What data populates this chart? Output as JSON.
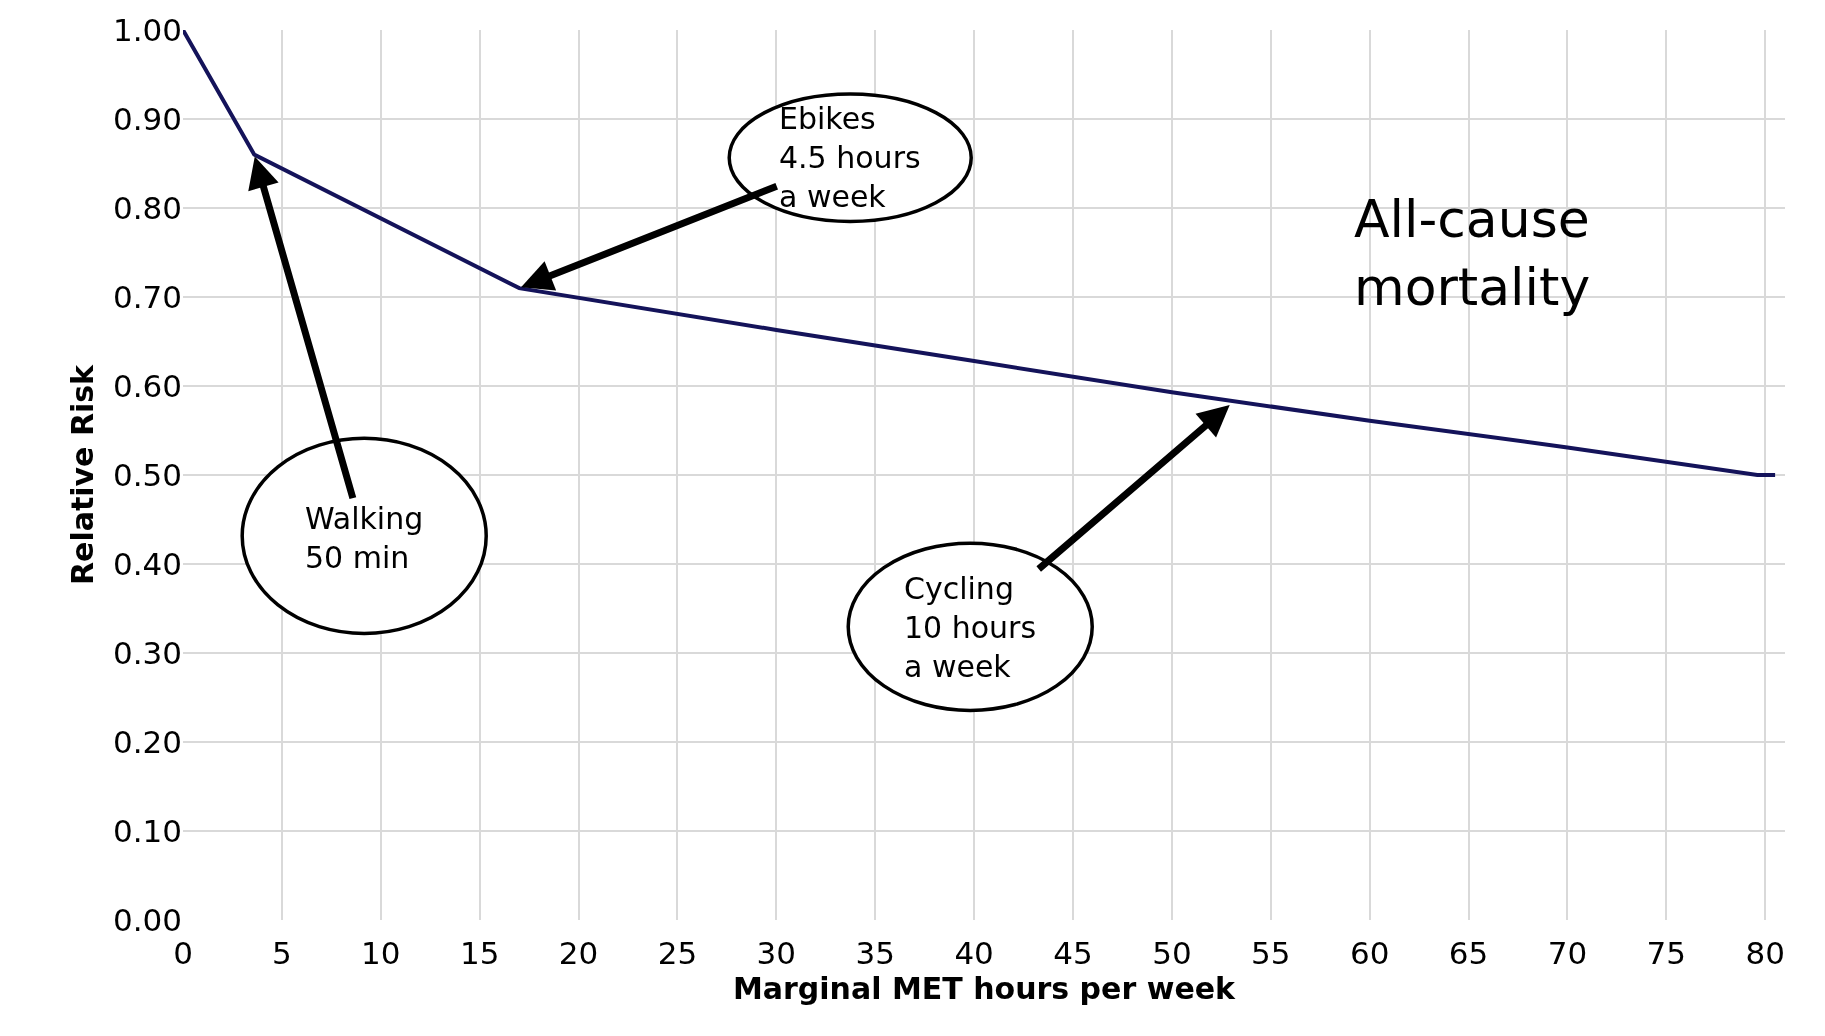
{
  "chart_data": {
    "type": "line",
    "xlabel": "Marginal MET hours per week",
    "ylabel": "Relative Risk",
    "x": [
      0,
      3.6,
      17,
      30,
      40,
      50,
      60,
      70,
      79.6,
      80.5
    ],
    "series": [
      {
        "color": "#14135a",
        "values": [
          1.0,
          0.86,
          0.71,
          0.663,
          0.628,
          0.593,
          0.561,
          0.531,
          0.5,
          0.5
        ]
      }
    ],
    "xlim": [
      0,
      81
    ],
    "xticks": [
      0,
      5,
      10,
      15,
      20,
      25,
      30,
      35,
      40,
      45,
      50,
      55,
      60,
      65,
      70,
      75,
      80
    ],
    "ylim": [
      0,
      1.0
    ],
    "yticks": [
      {
        "value": 0,
        "label": "0.00"
      },
      {
        "value": 0.1,
        "label": "0.10"
      },
      {
        "value": 0.2,
        "label": "0.20"
      },
      {
        "value": 0.3,
        "label": "0.30"
      },
      {
        "value": 0.4,
        "label": "0.40"
      },
      {
        "value": 0.5,
        "label": "0.50"
      },
      {
        "value": 0.6,
        "label": "0.60"
      },
      {
        "value": 0.7,
        "label": "0.70"
      },
      {
        "value": 0.8,
        "label": "0.80"
      },
      {
        "value": 0.9,
        "label": "0.90"
      },
      {
        "value": 1.0,
        "label": "1.00"
      }
    ],
    "grid": true,
    "marker": "none",
    "line_style": "solid",
    "annotations": [
      {
        "text": "Walking\n50 min",
        "x": 3.6,
        "y": 0.86
      },
      {
        "text": "Ebikes\n4.5 hours\na week",
        "x": 17,
        "y": 0.71
      },
      {
        "text": "Cycling\n10 hours\na week",
        "x": 53,
        "y": 0.58
      },
      "All-cause\nmortality"
    ]
  }
}
